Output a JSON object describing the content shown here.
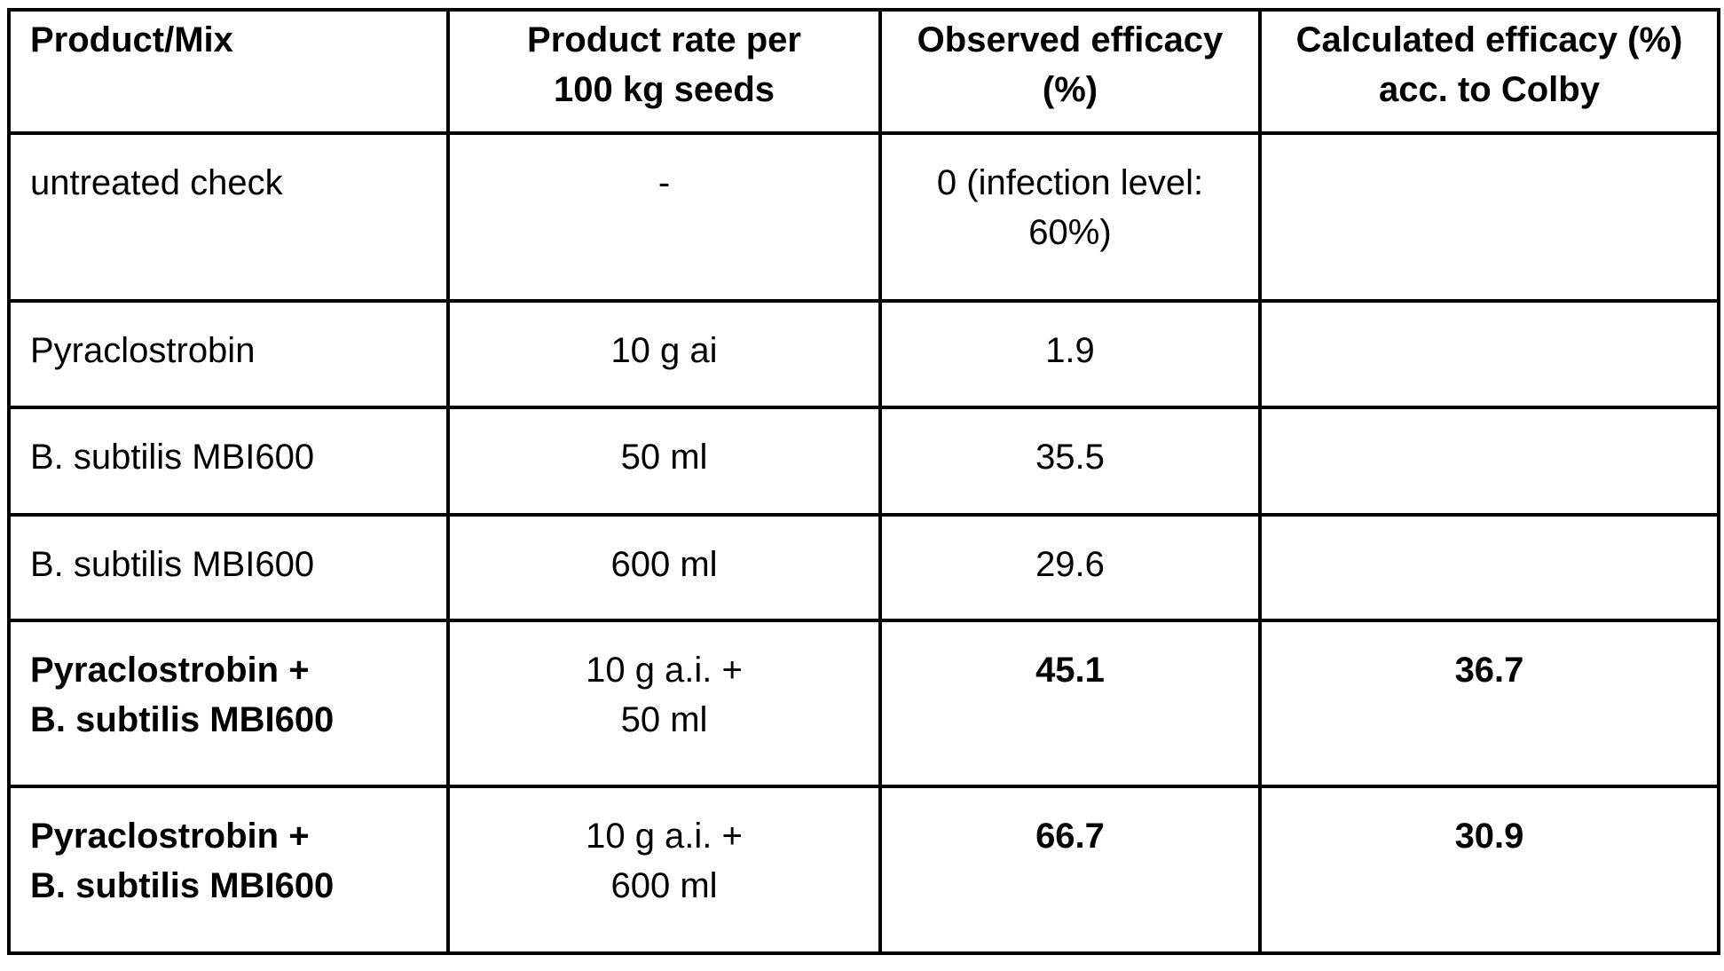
{
  "colors": {
    "background": "#ffffff",
    "text": "#000000",
    "border": "#000000"
  },
  "table": {
    "headers": [
      "Product/Mix",
      "Product rate per\n100 kg seeds",
      "Observed efficacy\n(%)",
      "Calculated efficacy (%)\nacc. to Colby"
    ],
    "rows": [
      {
        "cells": [
          "untreated check",
          "-",
          "0 (infection level:\n60%)",
          ""
        ]
      },
      {
        "cells": [
          "Pyraclostrobin",
          "10 g ai",
          "1.9",
          ""
        ]
      },
      {
        "cells": [
          "B. subtilis MBI600",
          "50 ml",
          "35.5",
          ""
        ]
      },
      {
        "cells": [
          "B. subtilis MBI600",
          "600 ml",
          "29.6",
          ""
        ]
      },
      {
        "cells": [
          "Pyraclostrobin +\nB. subtilis MBI600",
          "10 g a.i. +\n50 ml",
          "45.1",
          "36.7"
        ]
      },
      {
        "cells": [
          "Pyraclostrobin +\nB. subtilis MBI600",
          "10 g a.i. +\n600 ml",
          "66.7",
          "30.9"
        ]
      }
    ]
  }
}
